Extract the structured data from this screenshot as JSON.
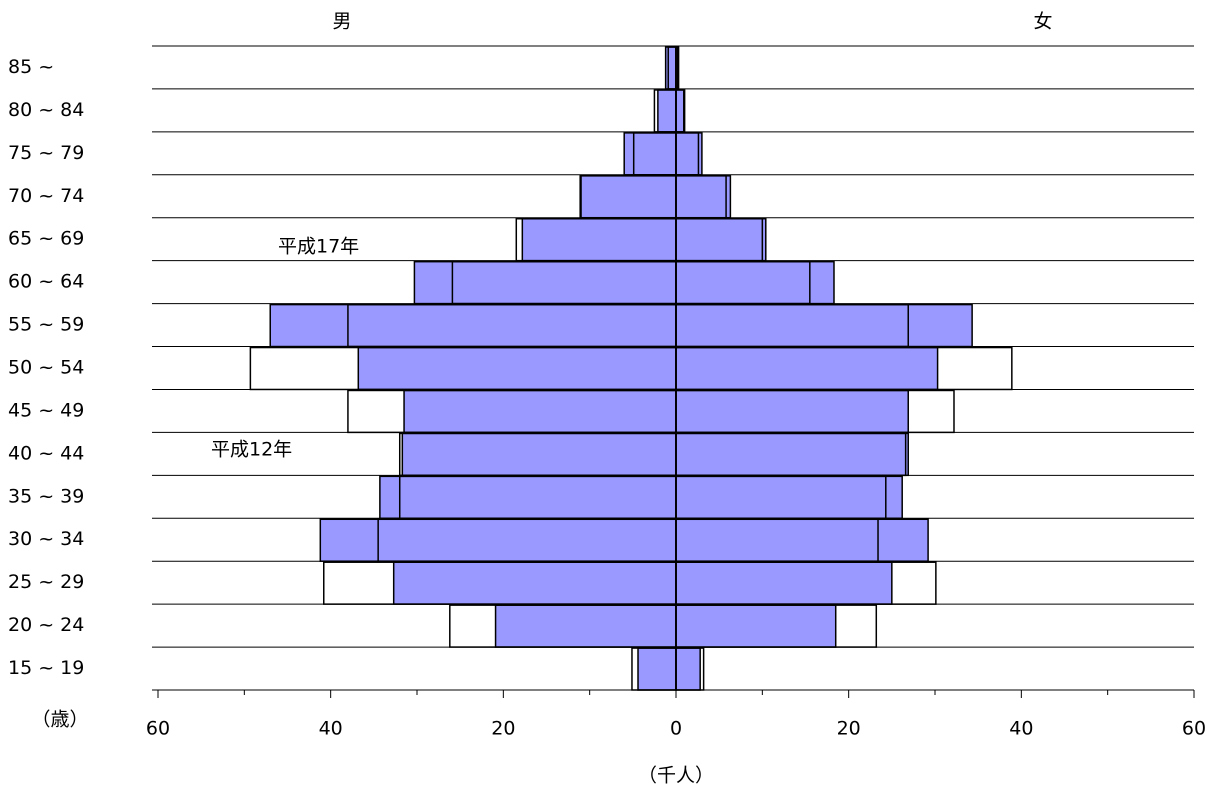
{
  "chart_data": {
    "type": "pyramid",
    "left_title": "男",
    "right_title": "女",
    "x_label": "（千人）",
    "y_label": "（歳）",
    "categories": [
      "85 ~",
      "80 ~ 84",
      "75 ~ 79",
      "70 ~ 74",
      "65 ~ 69",
      "60 ~ 64",
      "55 ~ 59",
      "50 ~ 54",
      "45 ~ 49",
      "40 ~ 44",
      "35 ~ 39",
      "30 ~ 34",
      "25 ~ 29",
      "20 ~ 24",
      "15 ~ 19"
    ],
    "series": [
      {
        "name": "平成17年",
        "color": "#9999ff",
        "male": [
          1.2,
          2.1,
          6.0,
          11.1,
          17.8,
          30.3,
          47.0,
          36.8,
          31.5,
          31.7,
          34.3,
          41.2,
          32.7,
          20.9,
          4.4
        ],
        "female": [
          0.3,
          1.0,
          3.0,
          6.3,
          10.4,
          18.3,
          34.3,
          30.3,
          26.9,
          26.9,
          26.2,
          29.2,
          25.0,
          18.5,
          2.8
        ]
      },
      {
        "name": "平成12年",
        "color": "none",
        "male": [
          0.9,
          2.5,
          4.9,
          11.0,
          18.5,
          25.9,
          38.0,
          49.3,
          38.0,
          32.0,
          32.0,
          34.5,
          40.8,
          26.2,
          5.1
        ],
        "female": [
          0.2,
          0.9,
          2.6,
          5.8,
          10.0,
          15.5,
          26.9,
          38.9,
          32.2,
          26.6,
          24.3,
          23.4,
          30.1,
          23.2,
          3.2
        ]
      }
    ],
    "xlim": [
      0,
      60
    ],
    "xticks": [
      0,
      20,
      40,
      60
    ],
    "xminorticks": [
      10,
      30,
      50
    ],
    "grid": true
  }
}
